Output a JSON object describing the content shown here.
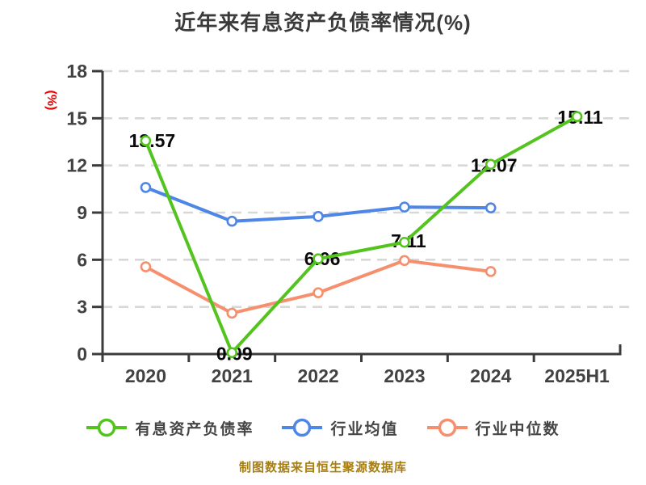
{
  "chart": {
    "title": "近年来有息资产负债率情况(%)",
    "y_unit": "(%)",
    "source_note": "制图数据来自恒生聚源数据库"
  },
  "colors": {
    "background": "#ffffff",
    "title_text": "#3b3b3b",
    "axis": "#3b3b3b",
    "grid": "#d8d8d8",
    "tick_text": "#424242",
    "data_label_text": "#0a0a0a",
    "y_unit_text": "#f10000",
    "source_text": "#a87e0f",
    "marker_fill": "#ffffff",
    "series_green": "#53c41e",
    "series_blue": "#4e86e8",
    "series_orange": "#f68f6d"
  },
  "legend": {
    "items": [
      {
        "label": "有息资产负债率",
        "color": "#53c41e"
      },
      {
        "label": "行业均值",
        "color": "#4e86e8"
      },
      {
        "label": "行业中位数",
        "color": "#f68f6d"
      }
    ]
  },
  "chart_data": {
    "type": "line",
    "title": "近年来有息资产负债率情况(%)",
    "categories": [
      "2020",
      "2021",
      "2022",
      "2023",
      "2024",
      "2025H1"
    ],
    "ylabel": "(%)",
    "ylim": [
      0,
      18
    ],
    "y_ticks": [
      0,
      3,
      6,
      9,
      12,
      15,
      18
    ],
    "grid": "horizontal-dashed",
    "legend_position": "bottom",
    "series": [
      {
        "name": "有息资产负债率",
        "color": "#53c41e",
        "values": [
          13.57,
          0.09,
          6.06,
          7.11,
          12.07,
          15.11
        ],
        "data_labels": [
          "13.57",
          "0.09",
          "6.06",
          "7.11",
          "12.07",
          "15.11"
        ]
      },
      {
        "name": "行业均值",
        "color": "#4e86e8",
        "values": [
          10.6,
          8.45,
          8.75,
          9.35,
          9.3,
          null
        ],
        "data_labels": null
      },
      {
        "name": "行业中位数",
        "color": "#f68f6d",
        "values": [
          5.55,
          2.6,
          3.9,
          5.95,
          5.25,
          null
        ],
        "data_labels": null
      }
    ],
    "source_note": "制图数据来自恒生聚源数据库"
  }
}
